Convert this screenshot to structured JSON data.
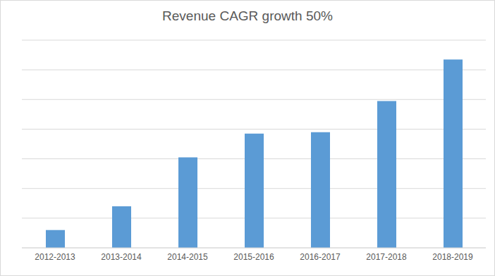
{
  "chart_data": {
    "type": "bar",
    "title": "Revenue CAGR growth 50%",
    "categories": [
      "2012-2013",
      "2013-2014",
      "2014-2015",
      "2015-2016",
      "2016-2017",
      "2017-2018",
      "2018-2019"
    ],
    "values": [
      0.6,
      1.4,
      3.05,
      3.85,
      3.9,
      4.95,
      6.35
    ],
    "color": "#5b9bd5",
    "ylim": [
      0,
      7
    ],
    "yticks": [
      0,
      1,
      2,
      3,
      4,
      5,
      6,
      7
    ],
    "grid": true,
    "tick_labels": "x"
  }
}
